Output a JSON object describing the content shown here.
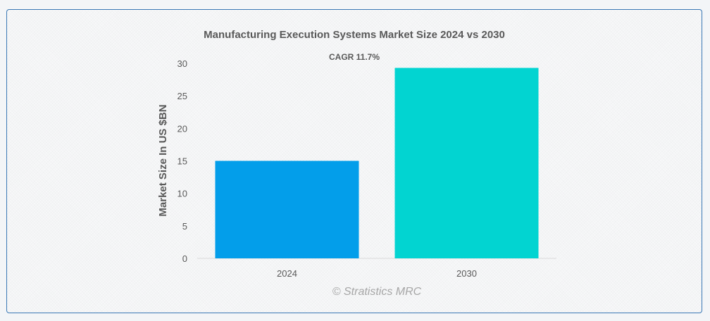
{
  "chart_data": {
    "type": "bar",
    "title": "Manufacturing Execution Systems Market Size 2024 vs 2030",
    "annotation": "CAGR 11.7%",
    "xlabel": "",
    "ylabel": "Market Size In US $BN",
    "categories": [
      "2024",
      "2030"
    ],
    "values": [
      15.0,
      29.3
    ],
    "colors": [
      "#039eea",
      "#02d4d1"
    ],
    "ylim": [
      0,
      30
    ],
    "yticks": [
      0,
      5,
      10,
      15,
      20,
      25,
      30
    ],
    "grid": false,
    "legend": "none"
  },
  "watermark": "© Stratistics MRC"
}
